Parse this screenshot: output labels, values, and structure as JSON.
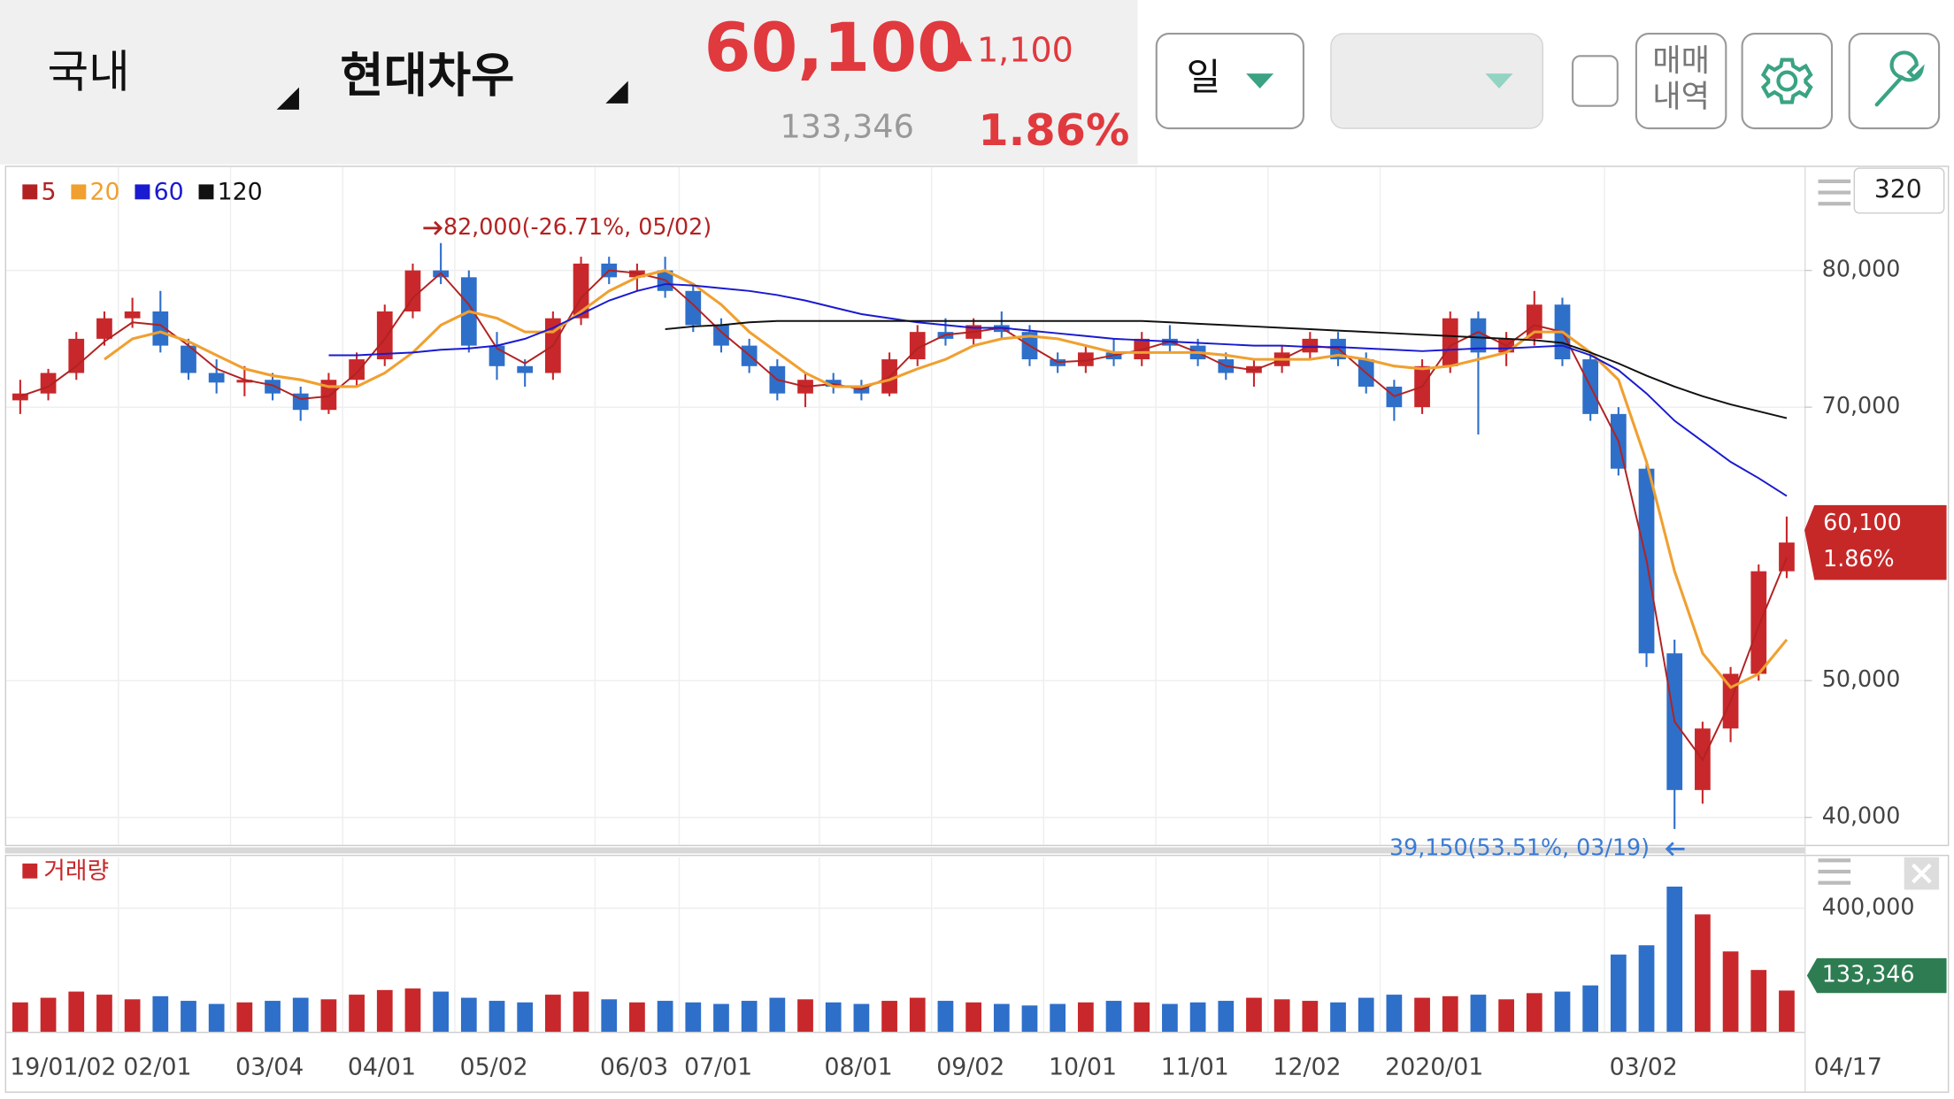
{
  "header": {
    "market": "국내",
    "stock": "현대차우",
    "price": "60,100",
    "change": "1,100",
    "volume": "133,346",
    "change_rate": "1.86%"
  },
  "controls": {
    "period": "일",
    "history": [
      "매매",
      "내역"
    ]
  },
  "chart_data": {
    "type": "candlestick",
    "visible_count": "320",
    "up_color": "#c8282b",
    "down_color": "#2e6fc9",
    "categories": [
      "19/01/02",
      null,
      null,
      null,
      "02/01",
      null,
      null,
      null,
      "03/04",
      null,
      null,
      null,
      "04/01",
      null,
      null,
      null,
      "05/02",
      null,
      null,
      null,
      null,
      "06/03",
      null,
      null,
      "07/01",
      null,
      null,
      null,
      null,
      "08/01",
      null,
      null,
      null,
      "09/02",
      null,
      null,
      null,
      "10/01",
      null,
      null,
      null,
      "11/01",
      null,
      null,
      null,
      "12/02",
      null,
      null,
      null,
      "2020/01",
      null,
      null,
      null,
      null,
      null,
      null,
      null,
      "03/02",
      null,
      null,
      null,
      null,
      null,
      "04/17"
    ],
    "ohlc": [
      [
        70500,
        72000,
        69500,
        71000
      ],
      [
        71000,
        72800,
        70500,
        72500
      ],
      [
        72500,
        75500,
        72000,
        75000
      ],
      [
        75000,
        77000,
        74500,
        76500
      ],
      [
        76500,
        78000,
        75800,
        77000
      ],
      [
        77000,
        78500,
        74000,
        74500
      ],
      [
        74500,
        75000,
        72000,
        72500
      ],
      [
        72500,
        73500,
        71000,
        71800
      ],
      [
        71800,
        73000,
        70800,
        72000
      ],
      [
        72000,
        72500,
        70500,
        71000
      ],
      [
        71000,
        71500,
        69000,
        69800
      ],
      [
        69800,
        72500,
        69500,
        72000
      ],
      [
        72000,
        74000,
        71500,
        73500
      ],
      [
        73500,
        77500,
        73000,
        77000
      ],
      [
        77000,
        80500,
        76500,
        80000
      ],
      [
        80000,
        82000,
        79000,
        79500
      ],
      [
        79500,
        80000,
        74000,
        74500
      ],
      [
        74500,
        75500,
        72000,
        73000
      ],
      [
        73000,
        73500,
        71500,
        72500
      ],
      [
        72500,
        77000,
        72000,
        76500
      ],
      [
        76500,
        81000,
        76000,
        80500
      ],
      [
        80500,
        81000,
        79000,
        79500
      ],
      [
        79500,
        80500,
        78500,
        80000
      ],
      [
        80000,
        81000,
        78000,
        78500
      ],
      [
        78500,
        79000,
        75500,
        76000
      ],
      [
        76000,
        76500,
        74000,
        74500
      ],
      [
        74500,
        75000,
        72500,
        73000
      ],
      [
        73000,
        73500,
        70500,
        71000
      ],
      [
        71000,
        72500,
        70000,
        72000
      ],
      [
        72000,
        72500,
        71000,
        71500
      ],
      [
        71500,
        72000,
        70500,
        71000
      ],
      [
        71000,
        74000,
        70800,
        73500
      ],
      [
        73500,
        76000,
        73000,
        75500
      ],
      [
        75500,
        76500,
        74500,
        75000
      ],
      [
        75000,
        76500,
        74500,
        76000
      ],
      [
        76000,
        77000,
        75000,
        75500
      ],
      [
        75500,
        76000,
        73000,
        73500
      ],
      [
        73500,
        74000,
        72500,
        73000
      ],
      [
        73000,
        74500,
        72500,
        74000
      ],
      [
        74000,
        75000,
        73000,
        73500
      ],
      [
        73500,
        75500,
        73000,
        75000
      ],
      [
        75000,
        76000,
        74000,
        74500
      ],
      [
        74500,
        75000,
        73000,
        73500
      ],
      [
        73500,
        74000,
        72000,
        72500
      ],
      [
        72500,
        73500,
        71500,
        73000
      ],
      [
        73000,
        74500,
        72500,
        74000
      ],
      [
        74000,
        75500,
        73500,
        75000
      ],
      [
        75000,
        75500,
        73000,
        73500
      ],
      [
        73500,
        74000,
        71000,
        71500
      ],
      [
        71500,
        72000,
        69000,
        70000
      ],
      [
        70000,
        73500,
        69500,
        73000
      ],
      [
        73000,
        77000,
        72500,
        76500
      ],
      [
        76500,
        77000,
        68000,
        74000
      ],
      [
        74000,
        75500,
        73000,
        75000
      ],
      [
        75000,
        78500,
        74500,
        77500
      ],
      [
        77500,
        78000,
        73000,
        73500
      ],
      [
        73500,
        74000,
        69000,
        69500
      ],
      [
        69500,
        70000,
        65000,
        65500
      ],
      [
        65500,
        66000,
        51000,
        52000
      ],
      [
        52000,
        53000,
        39150,
        42000
      ],
      [
        42000,
        47000,
        41000,
        46500
      ],
      [
        46500,
        51000,
        45500,
        50500
      ],
      [
        50500,
        58500,
        50000,
        58000
      ],
      [
        58000,
        62000,
        57500,
        60100
      ]
    ],
    "moving_averages": [
      {
        "name": "5",
        "color": "#b22222",
        "values": [
          70800,
          71500,
          73000,
          74800,
          76200,
          76000,
          74500,
          72800,
          72000,
          71600,
          70600,
          70800,
          72500,
          75000,
          78000,
          79800,
          77500,
          74300,
          73200,
          74500,
          78000,
          80000,
          79800,
          79300,
          77500,
          75500,
          73800,
          72000,
          71500,
          71700,
          71300,
          72200,
          74300,
          75300,
          75500,
          75800,
          74500,
          73300,
          73400,
          73800,
          74200,
          74800,
          74000,
          73000,
          72700,
          73500,
          74500,
          74300,
          72500,
          70800,
          71500,
          74500,
          75500,
          74500,
          76000,
          75500,
          71500,
          67500,
          58800,
          47000,
          44200,
          48500,
          54000,
          59000
        ]
      },
      {
        "name": "20",
        "color": "#f0a030",
        "values": [
          null,
          null,
          null,
          73500,
          75000,
          75500,
          74800,
          73800,
          72800,
          72300,
          72000,
          71500,
          71500,
          72500,
          74000,
          76000,
          77000,
          76500,
          75500,
          75500,
          77000,
          78500,
          79500,
          80000,
          79000,
          77500,
          75500,
          74000,
          72500,
          71500,
          71500,
          72000,
          72800,
          73500,
          74500,
          75000,
          75200,
          75000,
          74500,
          74000,
          74000,
          74000,
          74000,
          73800,
          73500,
          73500,
          73500,
          73800,
          73500,
          73000,
          72800,
          73000,
          73500,
          74000,
          75500,
          75500,
          74000,
          72000,
          66000,
          58000,
          52000,
          49500,
          50500,
          53000
        ]
      },
      {
        "name": "60",
        "color": "#1a1ad0",
        "values": [
          null,
          null,
          null,
          null,
          null,
          null,
          null,
          null,
          null,
          null,
          null,
          73800,
          73800,
          73900,
          74000,
          74200,
          74300,
          74500,
          75000,
          75800,
          76800,
          77800,
          78500,
          79000,
          78900,
          78700,
          78500,
          78200,
          77800,
          77300,
          76800,
          76500,
          76200,
          76000,
          75800,
          75800,
          75600,
          75400,
          75200,
          75000,
          74900,
          74800,
          74700,
          74600,
          74500,
          74500,
          74400,
          74400,
          74300,
          74200,
          74100,
          74200,
          74300,
          74300,
          74400,
          74500,
          73800,
          72700,
          71000,
          69000,
          67500,
          66000,
          64800,
          63500
        ]
      },
      {
        "name": "120",
        "color": "#111111",
        "values": [
          null,
          null,
          null,
          null,
          null,
          null,
          null,
          null,
          null,
          null,
          null,
          null,
          null,
          null,
          null,
          null,
          null,
          null,
          null,
          null,
          null,
          null,
          null,
          75700,
          75900,
          76000,
          76200,
          76300,
          76300,
          76300,
          76300,
          76300,
          76300,
          76300,
          76300,
          76300,
          76300,
          76300,
          76300,
          76300,
          76300,
          76200,
          76100,
          76000,
          75900,
          75800,
          75700,
          75600,
          75500,
          75400,
          75300,
          75200,
          75100,
          75000,
          74900,
          74700,
          74000,
          73200,
          72300,
          71500,
          70800,
          70200,
          69700,
          69200
        ]
      }
    ],
    "ylim": [
      37995,
      87657
    ],
    "yticks": [
      {
        "value": 40000,
        "label": "40,000"
      },
      {
        "value": 50000,
        "label": "50,000"
      },
      {
        "value": 70000,
        "label": "70,000"
      },
      {
        "value": 80000,
        "label": "80,000"
      }
    ],
    "grid": true,
    "annotations": [
      {
        "text": "82,000(-26.71%, 05/02)",
        "color": "#b22222"
      },
      {
        "text": "39,150(53.51%, 03/19)",
        "color": "#3a7bd5"
      }
    ],
    "volume": {
      "name": "거래량",
      "color": "#c8282b",
      "values": [
        95000,
        110000,
        130000,
        120000,
        105000,
        115000,
        100000,
        90000,
        95000,
        100000,
        110000,
        105000,
        120000,
        135000,
        140000,
        130000,
        110000,
        100000,
        95000,
        120000,
        130000,
        105000,
        95000,
        100000,
        95000,
        90000,
        100000,
        110000,
        105000,
        95000,
        90000,
        100000,
        110000,
        100000,
        95000,
        90000,
        85000,
        90000,
        95000,
        100000,
        95000,
        90000,
        95000,
        100000,
        110000,
        105000,
        100000,
        95000,
        110000,
        120000,
        110000,
        115000,
        120000,
        105000,
        125000,
        130000,
        150000,
        250000,
        280000,
        470000,
        380000,
        260000,
        200000,
        133346
      ],
      "ylim": [
        0,
        565000
      ],
      "yticks": [
        {
          "value": 400000,
          "label": "400,000"
        }
      ]
    }
  }
}
